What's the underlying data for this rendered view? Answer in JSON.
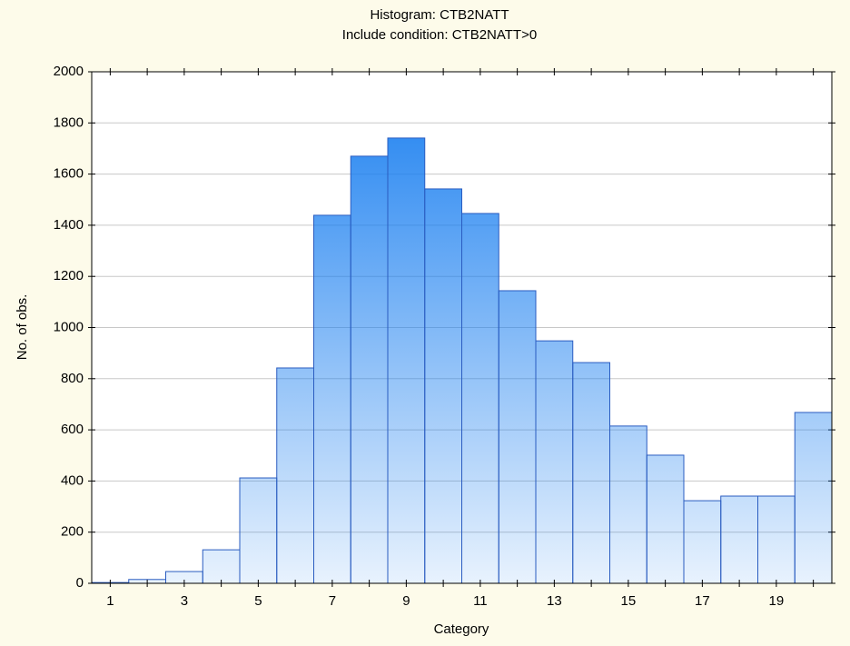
{
  "chart_data": {
    "type": "bar",
    "title": "Histogram: CTB2NATT",
    "subtitle": "Include condition: CTB2NATT>0",
    "x_label": "Category",
    "y_label": "No. of obs.",
    "categories": [
      1,
      null,
      3,
      null,
      5,
      null,
      7,
      null,
      9,
      null,
      11,
      null,
      13,
      null,
      15,
      null,
      17,
      null,
      19,
      null
    ],
    "values": [
      3,
      15,
      46,
      131,
      412,
      842,
      1439,
      1670,
      1741,
      1542,
      1446,
      1144,
      948,
      863,
      615,
      501,
      323,
      341,
      341,
      668
    ],
    "color": "#1a7ff0",
    "edge_color": "#2a5cc0",
    "ylim": [
      0,
      2000
    ],
    "yticks": [
      0,
      200,
      400,
      600,
      800,
      1000,
      1200,
      1400,
      1600,
      1800,
      2000
    ],
    "grid": true
  }
}
